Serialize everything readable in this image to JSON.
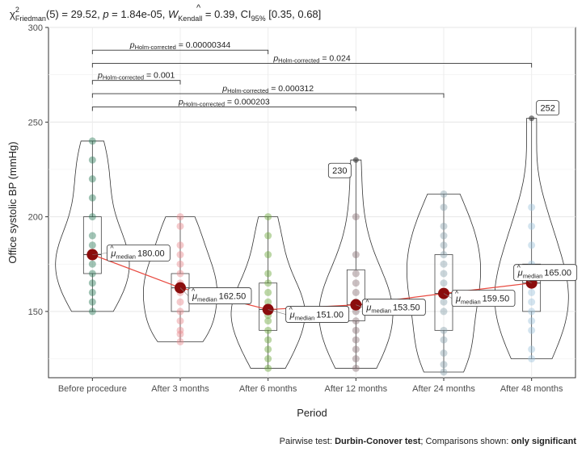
{
  "chart_data": {
    "type": "violin",
    "title_parts": {
      "chi": "χ",
      "chi_sup": "2",
      "chi_sub": "Friedman",
      "stat": "(5) = 29.52, ",
      "p_sym": "p",
      "p_val": " = 1.84e-05, ",
      "w_sym": "W",
      "w_sub": "Kendall",
      "w_val": " = 0.39, CI",
      "ci_sub": "95%",
      "ci_val": " [0.35, 0.68]"
    },
    "xlabel": "Period",
    "ylabel": "Office systolic BP (mmHg)",
    "ylim": [
      115,
      300
    ],
    "yticks": [
      150,
      200,
      250,
      300
    ],
    "grid": true,
    "categories": [
      "Before procedure",
      "After 3 months",
      "After 6 months",
      "After 12 months",
      "After 24 months",
      "After 48 months"
    ],
    "colors": [
      "#2e7d5b",
      "#e8898f",
      "#6aa73a",
      "#8a7075",
      "#8aa2ad",
      "#9ec4db"
    ],
    "medians": [
      180.0,
      162.5,
      151.0,
      153.5,
      159.5,
      165.0
    ],
    "median_labels": [
      "180.00",
      "162.50",
      "151.00",
      "153.50",
      "159.50",
      "165.00"
    ],
    "median_label_prefix": "μ",
    "median_label_sub": "median",
    "groups": [
      {
        "min": 150,
        "max": 240,
        "q1": 170,
        "q3": 200,
        "points": [
          150,
          155,
          160,
          165,
          170,
          175,
          180,
          180,
          185,
          190,
          200,
          210,
          220,
          230,
          240
        ]
      },
      {
        "min": 134,
        "max": 200,
        "q1": 150,
        "q3": 170,
        "points": [
          134,
          138,
          140,
          145,
          150,
          155,
          160,
          162,
          165,
          170,
          175,
          180,
          185,
          195,
          200
        ]
      },
      {
        "min": 120,
        "max": 200,
        "q1": 140,
        "q3": 165,
        "points": [
          120,
          125,
          130,
          135,
          140,
          145,
          148,
          150,
          152,
          155,
          160,
          165,
          170,
          180,
          190,
          200
        ]
      },
      {
        "min": 120,
        "max": 230,
        "q1": 145,
        "q3": 172,
        "points": [
          120,
          125,
          130,
          135,
          140,
          145,
          150,
          153,
          155,
          160,
          165,
          170,
          180,
          200
        ]
      },
      {
        "min": 118,
        "max": 212,
        "q1": 140,
        "q3": 180,
        "points": [
          118,
          122,
          128,
          135,
          140,
          150,
          155,
          160,
          165,
          170,
          175,
          180,
          185,
          190,
          195,
          205,
          212
        ]
      },
      {
        "min": 125,
        "max": 252,
        "q1": 150,
        "q3": 175,
        "points": [
          125,
          130,
          140,
          145,
          150,
          155,
          160,
          165,
          170,
          175,
          185,
          195,
          205
        ]
      }
    ],
    "outliers": [
      {
        "group": 3,
        "value": 230,
        "label": "230"
      },
      {
        "group": 5,
        "value": 252,
        "label": "252"
      }
    ],
    "comparisons": [
      {
        "from": 0,
        "to": 2,
        "y": 288,
        "p_sym": "p",
        "p_sub": "Holm-corrected",
        "p_val": " = 0.00000344"
      },
      {
        "from": 0,
        "to": 5,
        "y": 281,
        "p_sym": "p",
        "p_sub": "Holm-corrected",
        "p_val": " = 0.024"
      },
      {
        "from": 0,
        "to": 1,
        "y": 272,
        "p_sym": "p",
        "p_sub": "Holm-corrected",
        "p_val": " = 0.001"
      },
      {
        "from": 0,
        "to": 4,
        "y": 265,
        "p_sym": "p",
        "p_sub": "Holm-corrected",
        "p_val": " = 0.000312"
      },
      {
        "from": 0,
        "to": 3,
        "y": 258,
        "p_sym": "p",
        "p_sub": "Holm-corrected",
        "p_val": " = 0.000203"
      }
    ],
    "caption_parts": {
      "a": "Pairwise test: ",
      "b": "Durbin-Conover test",
      "c": "; Comparisons shown: ",
      "d": "only significant"
    }
  }
}
